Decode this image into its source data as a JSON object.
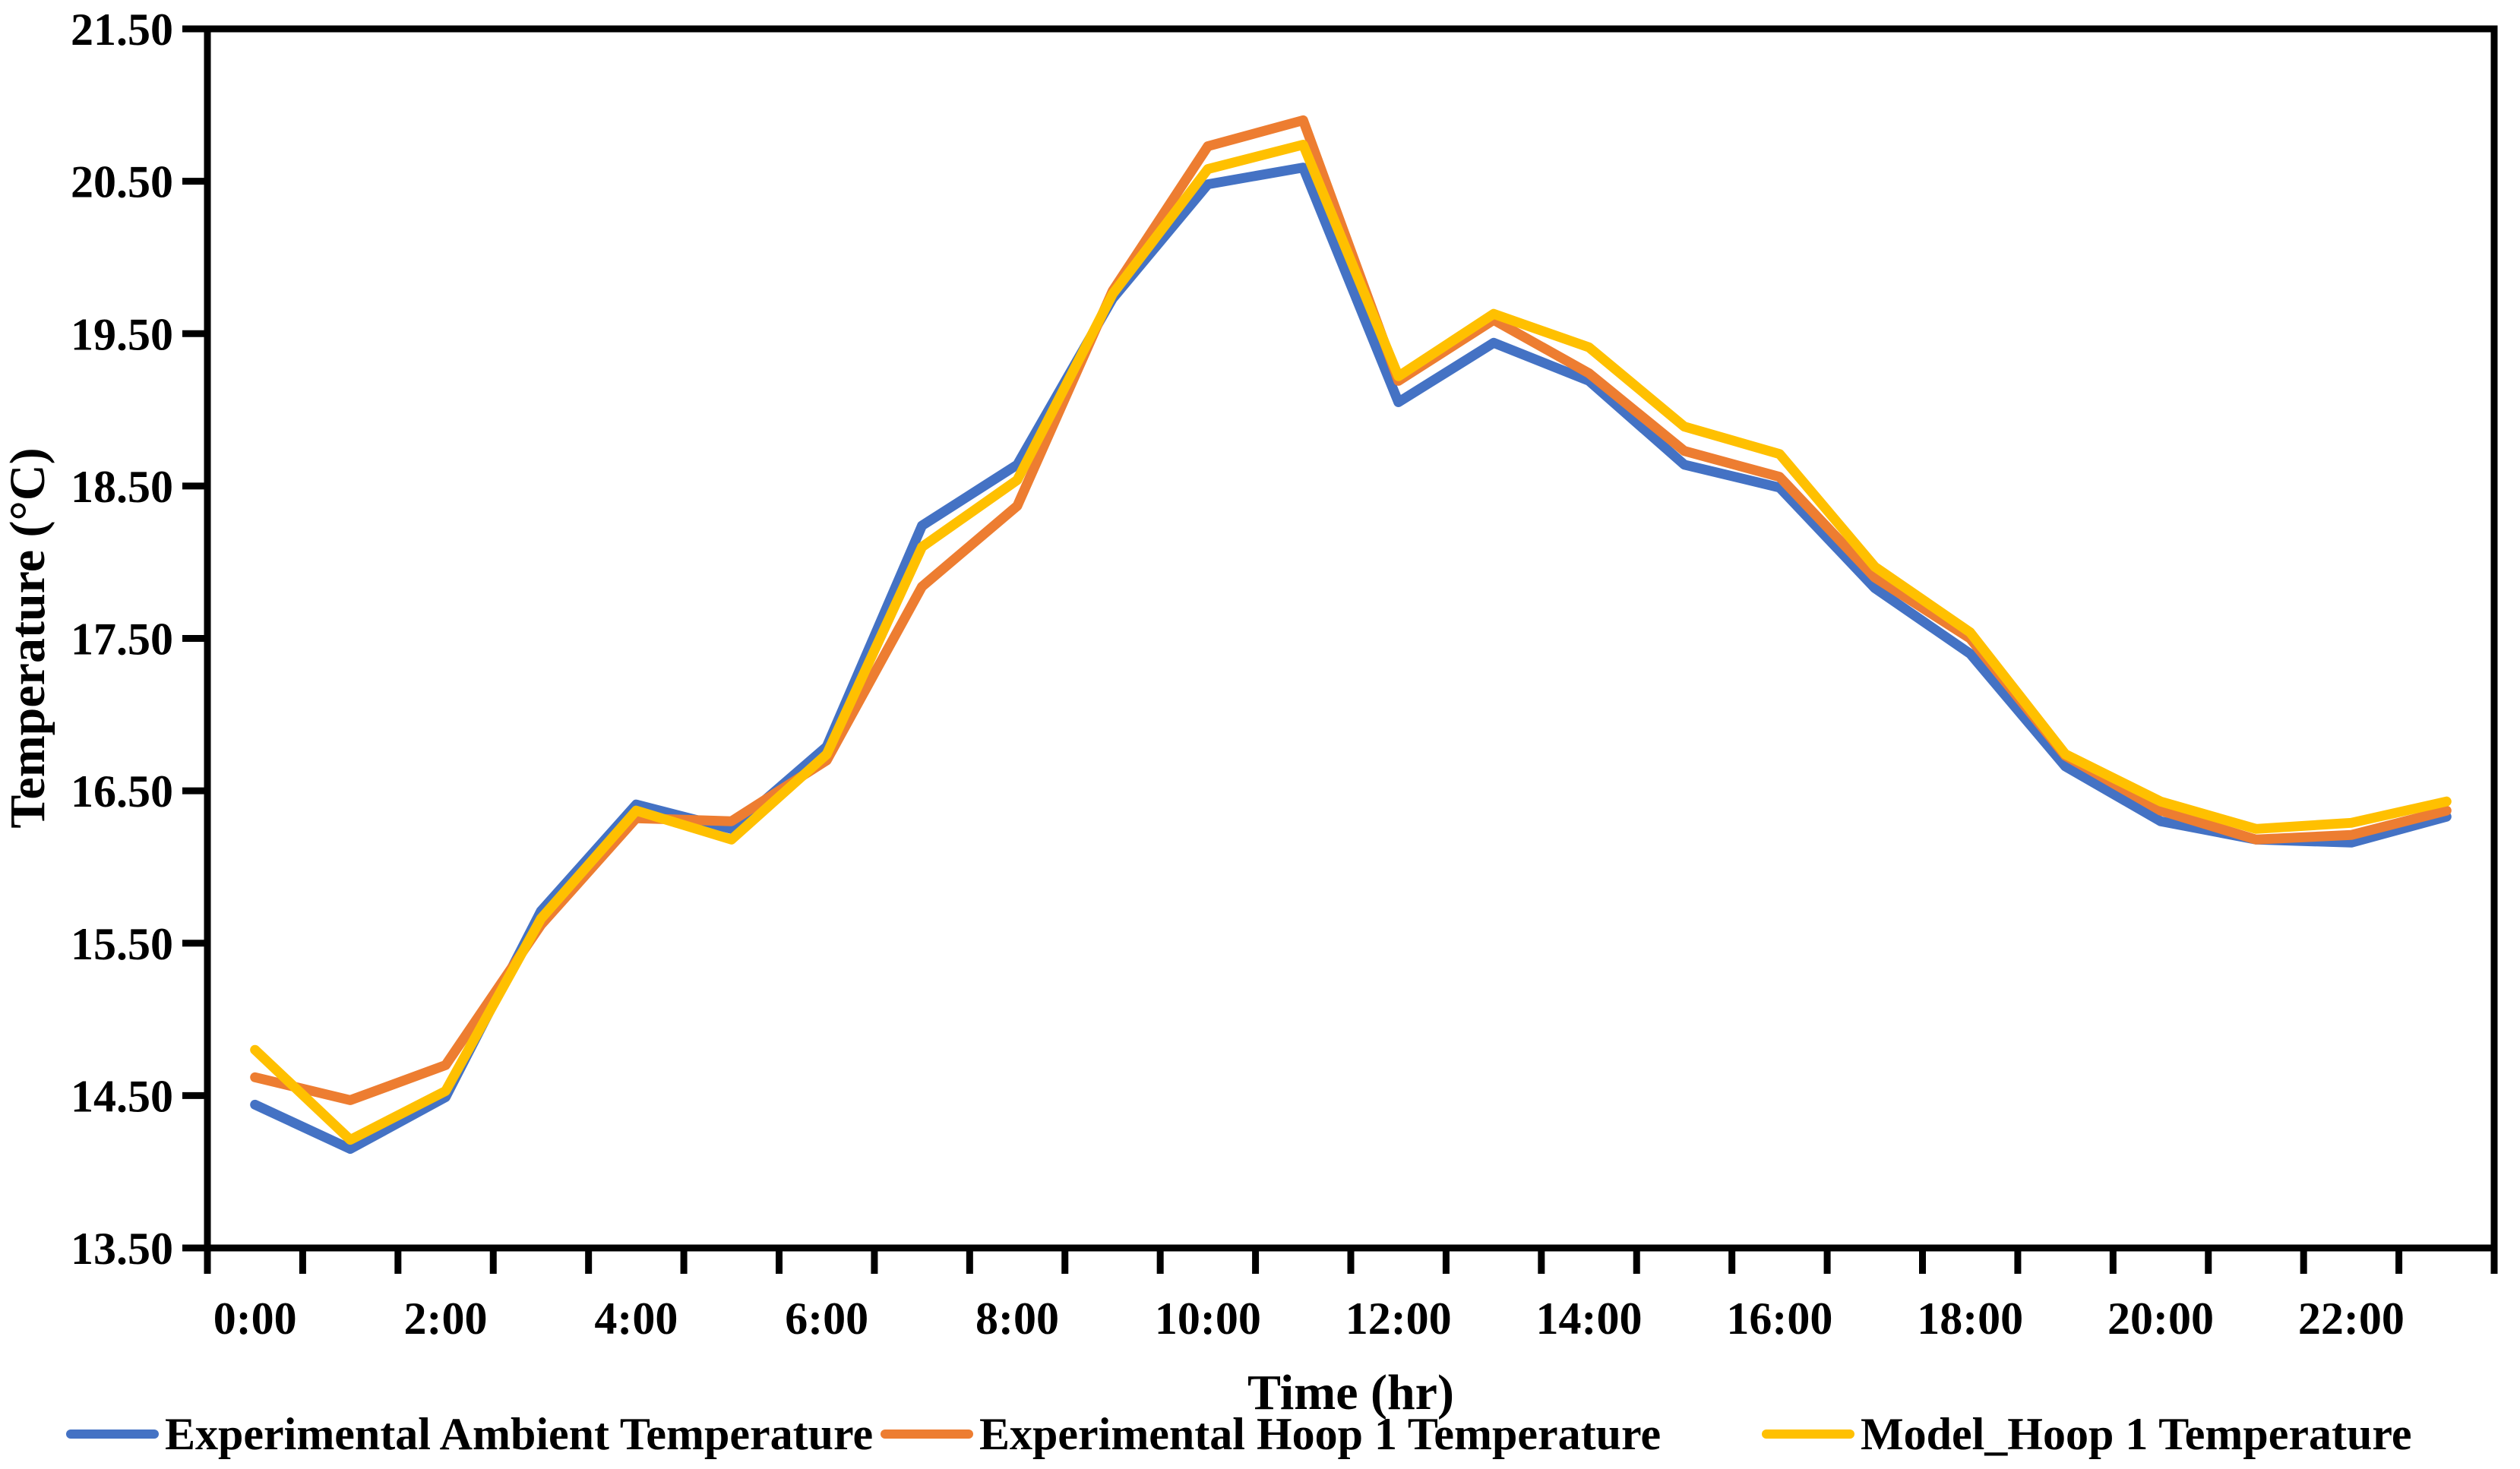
{
  "chart_data": {
    "type": "line",
    "title": "",
    "xlabel": "Time (hr)",
    "ylabel": "Temperature (°C)",
    "grid": false,
    "legend_position": "bottom",
    "ylim": [
      13.5,
      21.5
    ],
    "ytick_step": 1.0,
    "ytick_labels": [
      "21.50",
      "20.50",
      "19.50",
      "18.50",
      "17.50",
      "16.50",
      "15.50",
      "14.50",
      "13.50"
    ],
    "x_shown_tick_labels": [
      "0:00",
      "2:00",
      "4:00",
      "6:00",
      "8:00",
      "10:00",
      "12:00",
      "14:00",
      "16:00",
      "18:00",
      "20:00",
      "22:00"
    ],
    "categories": [
      "0:00",
      "1:00",
      "2:00",
      "3:00",
      "4:00",
      "5:00",
      "6:00",
      "7:00",
      "8:00",
      "9:00",
      "10:00",
      "11:00",
      "12:00",
      "13:00",
      "14:00",
      "15:00",
      "16:00",
      "17:00",
      "18:00",
      "19:00",
      "20:00",
      "21:00",
      "22:00",
      "23:00"
    ],
    "series": [
      {
        "name": "Experimental Ambient Temperature",
        "color": "#4472C4",
        "values": [
          14.44,
          14.15,
          14.49,
          15.71,
          16.41,
          16.25,
          16.79,
          18.24,
          18.64,
          19.73,
          20.48,
          20.59,
          19.05,
          19.44,
          19.19,
          18.64,
          18.49,
          17.83,
          17.4,
          16.66,
          16.3,
          16.18,
          16.16,
          16.33
        ]
      },
      {
        "name": "Experimental Hoop 1 Temperature",
        "color": "#ED7D31",
        "values": [
          14.62,
          14.47,
          14.7,
          15.62,
          16.32,
          16.3,
          16.7,
          17.84,
          18.37,
          19.78,
          20.73,
          20.9,
          19.19,
          19.59,
          19.24,
          18.73,
          18.56,
          17.9,
          17.5,
          16.73,
          16.37,
          16.18,
          16.21,
          16.37
        ]
      },
      {
        "name": "Model_Hoop 1 Temperature",
        "color": "#FFC000",
        "values": [
          14.8,
          14.21,
          14.53,
          15.66,
          16.37,
          16.18,
          16.74,
          18.1,
          18.54,
          19.76,
          20.58,
          20.74,
          19.22,
          19.63,
          19.41,
          18.89,
          18.71,
          17.97,
          17.54,
          16.74,
          16.43,
          16.25,
          16.29,
          16.43
        ]
      }
    ],
    "axis_color": "#000000",
    "plot_border": true
  }
}
